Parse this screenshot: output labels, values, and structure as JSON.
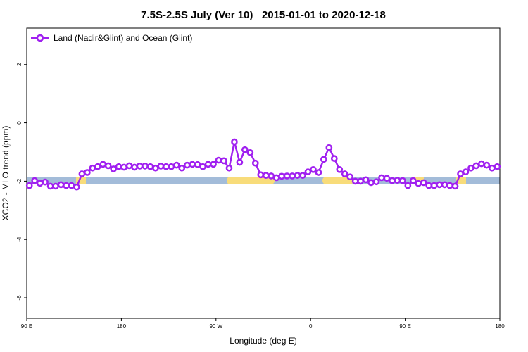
{
  "chart_data": {
    "type": "line",
    "title": "7.5S-2.5S July (Ver 10)   2015-01-01 to 2020-12-18",
    "xlabel": "Longitude (deg E)",
    "ylabel": "XCO2 - MLO trend (ppm)",
    "x": [
      92.5,
      97.5,
      102.5,
      107.5,
      112.5,
      117.5,
      122.5,
      127.5,
      132.5,
      137.5,
      142.5,
      147.5,
      152.5,
      157.5,
      162.5,
      167.5,
      172.5,
      177.5,
      182.5,
      187.5,
      192.5,
      197.5,
      202.5,
      207.5,
      212.5,
      217.5,
      222.5,
      227.5,
      232.5,
      237.5,
      242.5,
      247.5,
      252.5,
      257.5,
      262.5,
      267.5,
      272.5,
      277.5,
      282.5,
      287.5,
      292.5,
      297.5,
      302.5,
      307.5,
      312.5,
      317.5,
      322.5,
      327.5,
      332.5,
      337.5,
      342.5,
      347.5,
      352.5,
      357.5,
      362.5,
      367.5,
      372.5,
      377.5,
      382.5,
      387.5,
      392.5,
      397.5,
      402.5,
      407.5,
      412.5,
      417.5,
      422.5,
      427.5,
      432.5,
      437.5,
      442.5,
      447.5,
      452.5,
      457.5,
      462.5,
      467.5,
      472.5,
      477.5,
      482.5,
      487.5,
      492.5,
      497.5,
      502.5,
      507.5,
      512.5,
      517.5,
      522.5,
      527.5,
      532.5,
      537.5
    ],
    "series": [
      {
        "name": "Land (Nadir&Glint) and Ocean (Glint)",
        "color": "#a020f0",
        "values": [
          -2.15,
          -1.98,
          -2.07,
          -2.03,
          -2.17,
          -2.17,
          -2.12,
          -2.15,
          -2.15,
          -2.2,
          -1.75,
          -1.7,
          -1.55,
          -1.5,
          -1.42,
          -1.47,
          -1.58,
          -1.5,
          -1.52,
          -1.47,
          -1.52,
          -1.48,
          -1.48,
          -1.5,
          -1.55,
          -1.48,
          -1.5,
          -1.5,
          -1.45,
          -1.55,
          -1.45,
          -1.42,
          -1.43,
          -1.5,
          -1.42,
          -1.42,
          -1.28,
          -1.3,
          -1.55,
          -0.65,
          -1.35,
          -0.92,
          -1.02,
          -1.38,
          -1.78,
          -1.8,
          -1.82,
          -1.88,
          -1.83,
          -1.82,
          -1.82,
          -1.8,
          -1.8,
          -1.68,
          -1.6,
          -1.7,
          -1.25,
          -0.85,
          -1.22,
          -1.6,
          -1.75,
          -1.85,
          -2.0,
          -2.0,
          -1.95,
          -2.05,
          -2.02,
          -1.88,
          -1.9,
          -1.98,
          -1.97,
          -1.98,
          -2.15,
          -1.98,
          -2.08,
          -2.05,
          -2.15,
          -2.15,
          -2.12,
          -2.12,
          -2.15,
          -2.17,
          -1.75,
          -1.68,
          -1.55,
          -1.47,
          -1.4,
          -1.45,
          -1.55,
          -1.5
        ]
      }
    ],
    "xlim": [
      90,
      540
    ],
    "xticks": [
      {
        "value": 90,
        "label": "90 E"
      },
      180,
      {
        "value": 270,
        "label": "90 W"
      },
      {
        "value": 360,
        "label": "0"
      },
      {
        "value": 450,
        "label": "90 E"
      },
      {
        "value": 540,
        "label": "180"
      }
    ],
    "ylim": [
      -6.7,
      3.25
    ],
    "yticks": [
      -6,
      -4,
      -2,
      0,
      2
    ],
    "legend": "top-left"
  }
}
